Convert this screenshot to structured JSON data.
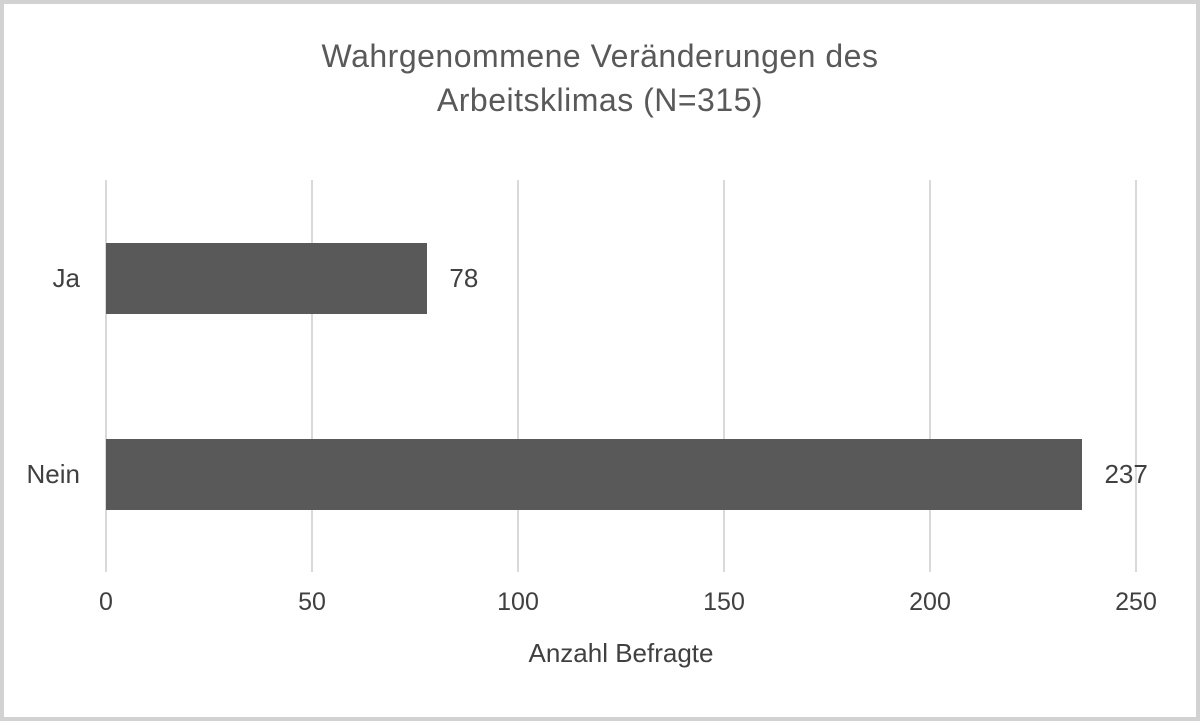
{
  "chart_data": {
    "type": "bar",
    "orientation": "horizontal",
    "title": "Wahrgenommene Veränderungen des Arbeitsklimas (N=315)",
    "title_line1": "Wahrgenommene Veränderungen des",
    "title_line2": "Arbeitsklimas (N=315)",
    "categories": [
      "Ja",
      "Nein"
    ],
    "values": [
      78,
      237
    ],
    "data_labels": [
      "78",
      "237"
    ],
    "xlabel": "Anzahl Befragte",
    "xlim": [
      0,
      250
    ],
    "xticks": [
      0,
      50,
      100,
      150,
      200,
      250
    ],
    "grid": "vertical-gridlines-only",
    "legend": "none",
    "bar_color": "#595959",
    "gridline_color": "#d9d9d9",
    "text_color": "#404040",
    "title_color": "#595959",
    "frame_border_color": "#d2d2d2",
    "background_color": "#ffffff"
  }
}
